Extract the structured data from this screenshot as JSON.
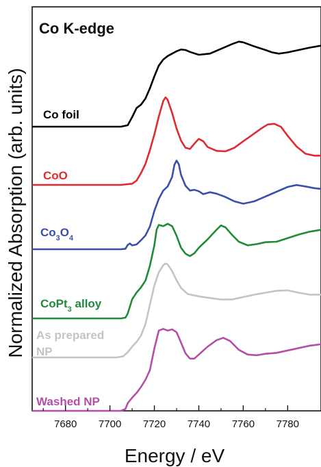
{
  "chart_data": {
    "type": "line",
    "title": "Co K-edge",
    "xlabel": "Energy / eV",
    "ylabel": "Normalized Absorption (arb. units)",
    "xlim": [
      7665,
      7795
    ],
    "x_ticks": [
      7680,
      7700,
      7720,
      7740,
      7760,
      7780
    ],
    "grid": false,
    "legend": "inline labels left of each curve",
    "series": [
      {
        "name": "Co foil",
        "color": "#000000",
        "points": [
          [
            7665,
            0
          ],
          [
            7705,
            0
          ],
          [
            7708,
            0.06
          ],
          [
            7710,
            0.4
          ],
          [
            7712,
            0.78
          ],
          [
            7714,
            0.92
          ],
          [
            7716,
            1.18
          ],
          [
            7718,
            1.6
          ],
          [
            7720,
            2.1
          ],
          [
            7722,
            2.55
          ],
          [
            7724,
            2.8
          ],
          [
            7726,
            2.95
          ],
          [
            7728,
            3.05
          ],
          [
            7730,
            3.15
          ],
          [
            7732,
            3.22
          ],
          [
            7734,
            3.2
          ],
          [
            7736,
            3.12
          ],
          [
            7740,
            3.0
          ],
          [
            7745,
            3.05
          ],
          [
            7750,
            3.25
          ],
          [
            7755,
            3.45
          ],
          [
            7758,
            3.55
          ],
          [
            7760,
            3.52
          ],
          [
            7765,
            3.35
          ],
          [
            7770,
            3.2
          ],
          [
            7773,
            3.1
          ],
          [
            7776,
            3.05
          ],
          [
            7780,
            3.1
          ],
          [
            7785,
            3.2
          ],
          [
            7790,
            3.3
          ],
          [
            7795,
            3.38
          ]
        ]
      },
      {
        "name": "CoO",
        "color": "#e02a2e",
        "points": [
          [
            7665,
            0
          ],
          [
            7705,
            0
          ],
          [
            7710,
            0.05
          ],
          [
            7712,
            0.18
          ],
          [
            7714,
            0.5
          ],
          [
            7716,
            0.88
          ],
          [
            7718,
            1.45
          ],
          [
            7720,
            2.1
          ],
          [
            7722,
            2.85
          ],
          [
            7724,
            3.5
          ],
          [
            7725,
            3.65
          ],
          [
            7726,
            3.55
          ],
          [
            7728,
            3.0
          ],
          [
            7730,
            2.35
          ],
          [
            7732,
            1.85
          ],
          [
            7734,
            1.55
          ],
          [
            7736,
            1.5
          ],
          [
            7738,
            1.72
          ],
          [
            7740,
            1.92
          ],
          [
            7742,
            1.82
          ],
          [
            7744,
            1.58
          ],
          [
            7748,
            1.42
          ],
          [
            7752,
            1.4
          ],
          [
            7756,
            1.55
          ],
          [
            7760,
            1.82
          ],
          [
            7764,
            2.08
          ],
          [
            7768,
            2.35
          ],
          [
            7771,
            2.52
          ],
          [
            7774,
            2.55
          ],
          [
            7777,
            2.42
          ],
          [
            7780,
            2.05
          ],
          [
            7784,
            1.6
          ],
          [
            7788,
            1.3
          ],
          [
            7792,
            1.22
          ],
          [
            7795,
            1.22
          ]
        ]
      },
      {
        "name": "Co3O4",
        "color": "#3a50a8",
        "points": [
          [
            7665,
            0
          ],
          [
            7705,
            0
          ],
          [
            7707,
            0.02
          ],
          [
            7708,
            0.18
          ],
          [
            7709,
            0.24
          ],
          [
            7710,
            0.16
          ],
          [
            7712,
            0.2
          ],
          [
            7714,
            0.38
          ],
          [
            7716,
            0.58
          ],
          [
            7718,
            0.95
          ],
          [
            7720,
            1.6
          ],
          [
            7722,
            2.1
          ],
          [
            7724,
            2.45
          ],
          [
            7726,
            2.62
          ],
          [
            7728,
            3.02
          ],
          [
            7729,
            3.52
          ],
          [
            7730,
            3.7
          ],
          [
            7731,
            3.55
          ],
          [
            7732,
            3.1
          ],
          [
            7734,
            2.65
          ],
          [
            7736,
            2.45
          ],
          [
            7738,
            2.48
          ],
          [
            7740,
            2.42
          ],
          [
            7742,
            2.3
          ],
          [
            7745,
            2.38
          ],
          [
            7748,
            2.32
          ],
          [
            7752,
            2.18
          ],
          [
            7756,
            2.0
          ],
          [
            7760,
            1.9
          ],
          [
            7765,
            2.0
          ],
          [
            7770,
            2.2
          ],
          [
            7775,
            2.4
          ],
          [
            7780,
            2.6
          ],
          [
            7784,
            2.68
          ],
          [
            7788,
            2.62
          ],
          [
            7792,
            2.55
          ],
          [
            7795,
            2.52
          ]
        ]
      },
      {
        "name": "CoPt3 alloy",
        "color": "#1e8a3a",
        "points": [
          [
            7665,
            0
          ],
          [
            7705,
            0
          ],
          [
            7707,
            0.03
          ],
          [
            7708,
            0.2
          ],
          [
            7710,
            0.8
          ],
          [
            7712,
            1.08
          ],
          [
            7714,
            1.3
          ],
          [
            7716,
            1.58
          ],
          [
            7718,
            2.2
          ],
          [
            7720,
            3.05
          ],
          [
            7721,
            3.7
          ],
          [
            7722,
            3.9
          ],
          [
            7724,
            3.85
          ],
          [
            7726,
            3.95
          ],
          [
            7728,
            3.85
          ],
          [
            7730,
            3.45
          ],
          [
            7732,
            2.95
          ],
          [
            7734,
            2.7
          ],
          [
            7736,
            2.6
          ],
          [
            7738,
            2.72
          ],
          [
            7740,
            2.95
          ],
          [
            7744,
            3.3
          ],
          [
            7748,
            3.7
          ],
          [
            7750,
            3.88
          ],
          [
            7752,
            3.8
          ],
          [
            7755,
            3.48
          ],
          [
            7758,
            3.2
          ],
          [
            7762,
            3.05
          ],
          [
            7766,
            3.1
          ],
          [
            7770,
            3.18
          ],
          [
            7775,
            3.2
          ],
          [
            7780,
            3.35
          ],
          [
            7785,
            3.5
          ],
          [
            7790,
            3.62
          ],
          [
            7795,
            3.7
          ]
        ]
      },
      {
        "name": "As prepared NP",
        "color": "#c4c4c4",
        "points": [
          [
            7665,
            0
          ],
          [
            7703,
            0
          ],
          [
            7706,
            0.05
          ],
          [
            7708,
            0.22
          ],
          [
            7710,
            0.45
          ],
          [
            7712,
            0.65
          ],
          [
            7714,
            0.92
          ],
          [
            7716,
            1.4
          ],
          [
            7718,
            2.2
          ],
          [
            7720,
            3.0
          ],
          [
            7722,
            3.55
          ],
          [
            7724,
            3.85
          ],
          [
            7725,
            3.92
          ],
          [
            7726,
            3.88
          ],
          [
            7728,
            3.6
          ],
          [
            7730,
            3.22
          ],
          [
            7732,
            2.9
          ],
          [
            7735,
            2.65
          ],
          [
            7740,
            2.55
          ],
          [
            7745,
            2.48
          ],
          [
            7750,
            2.42
          ],
          [
            7755,
            2.42
          ],
          [
            7760,
            2.52
          ],
          [
            7765,
            2.62
          ],
          [
            7770,
            2.7
          ],
          [
            7775,
            2.78
          ],
          [
            7780,
            2.8
          ],
          [
            7785,
            2.7
          ],
          [
            7790,
            2.62
          ],
          [
            7795,
            2.62
          ]
        ]
      },
      {
        "name": "Washed NP",
        "color": "#b44ea6",
        "points": [
          [
            7665,
            0
          ],
          [
            7705,
            0
          ],
          [
            7707,
            0.08
          ],
          [
            7708,
            0.32
          ],
          [
            7710,
            0.55
          ],
          [
            7712,
            0.75
          ],
          [
            7714,
            1.0
          ],
          [
            7716,
            1.3
          ],
          [
            7718,
            1.7
          ],
          [
            7720,
            2.6
          ],
          [
            7722,
            3.35
          ],
          [
            7724,
            3.42
          ],
          [
            7726,
            3.35
          ],
          [
            7728,
            3.4
          ],
          [
            7730,
            3.28
          ],
          [
            7732,
            2.85
          ],
          [
            7734,
            2.4
          ],
          [
            7736,
            2.18
          ],
          [
            7738,
            2.18
          ],
          [
            7740,
            2.35
          ],
          [
            7744,
            2.68
          ],
          [
            7748,
            2.95
          ],
          [
            7751,
            3.05
          ],
          [
            7754,
            2.92
          ],
          [
            7758,
            2.55
          ],
          [
            7762,
            2.35
          ],
          [
            7766,
            2.32
          ],
          [
            7770,
            2.38
          ],
          [
            7775,
            2.42
          ],
          [
            7780,
            2.52
          ],
          [
            7785,
            2.62
          ],
          [
            7790,
            2.72
          ],
          [
            7795,
            2.78
          ]
        ]
      }
    ]
  }
}
